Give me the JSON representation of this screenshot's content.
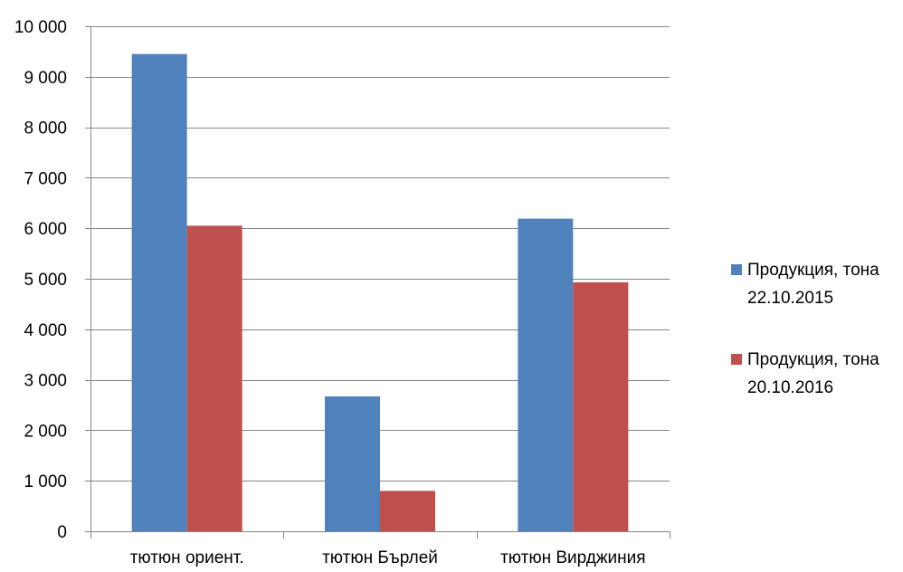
{
  "chart_data": {
    "type": "bar",
    "title": "",
    "xlabel": "",
    "ylabel": "",
    "categories": [
      "тютюн ориент.",
      "тютюн Бърлей",
      "тютюн Вирджиния"
    ],
    "series": [
      {
        "name": "Продукция, тона 22.10.2015",
        "name_lines": [
          "Продукция, тона",
          "22.10.2015"
        ],
        "color": "#4F81BD",
        "values": [
          9450,
          2670,
          6190
        ]
      },
      {
        "name": "Продукция, тона 20.10.2016",
        "name_lines": [
          "Продукция, тона",
          "20.10.2016"
        ],
        "color": "#C0504D",
        "values": [
          6050,
          800,
          4930
        ]
      }
    ],
    "ylim": [
      0,
      10000
    ],
    "yticks": [
      0,
      1000,
      2000,
      3000,
      4000,
      5000,
      6000,
      7000,
      8000,
      9000,
      10000
    ],
    "ytick_labels": [
      "0",
      "1 000",
      "2 000",
      "3 000",
      "4 000",
      "5 000",
      "6 000",
      "7 000",
      "8 000",
      "9 000",
      "10 000"
    ],
    "grid": true,
    "legend": "right"
  }
}
